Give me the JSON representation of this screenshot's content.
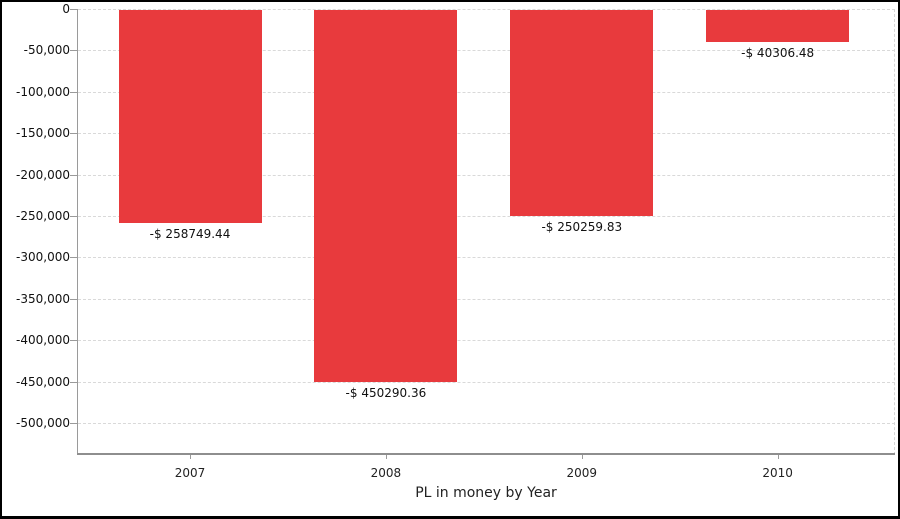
{
  "window": {
    "background": "#ffffff",
    "border_color": "#000000"
  },
  "chart_data": {
    "type": "bar",
    "title": "PL in money by Year",
    "xlabel": "PL in money by Year",
    "ylabel": "",
    "categories": [
      "2007",
      "2008",
      "2009",
      "2010"
    ],
    "series": [
      {
        "name": "PL in money",
        "values": [
          -258749.44,
          -450290.36,
          -250259.83,
          -40306.48
        ],
        "labels": [
          "-$ 258749.44",
          "-$ 450290.36",
          "-$ 250259.83",
          "-$ 40306.48"
        ],
        "color": "#e83a3d"
      }
    ],
    "y_ticks": [
      0,
      -50000,
      -100000,
      -150000,
      -200000,
      -250000,
      -300000,
      -350000,
      -400000,
      -450000,
      -500000
    ],
    "y_tick_labels": [
      "0",
      "-50,000",
      "-100,000",
      "-150,000",
      "-200,000",
      "-250,000",
      "-300,000",
      "-350,000",
      "-400,000",
      "-450,000",
      "-500,000"
    ],
    "ylim": [
      -538000,
      0
    ],
    "grid": "horizontal-dashed",
    "legend": "none",
    "colors": {
      "bar": "#e83a3d",
      "grid": "#d9d9d9",
      "axis": "#8e8e8e",
      "tick": "#9a9a9a",
      "text": "#111111"
    }
  }
}
